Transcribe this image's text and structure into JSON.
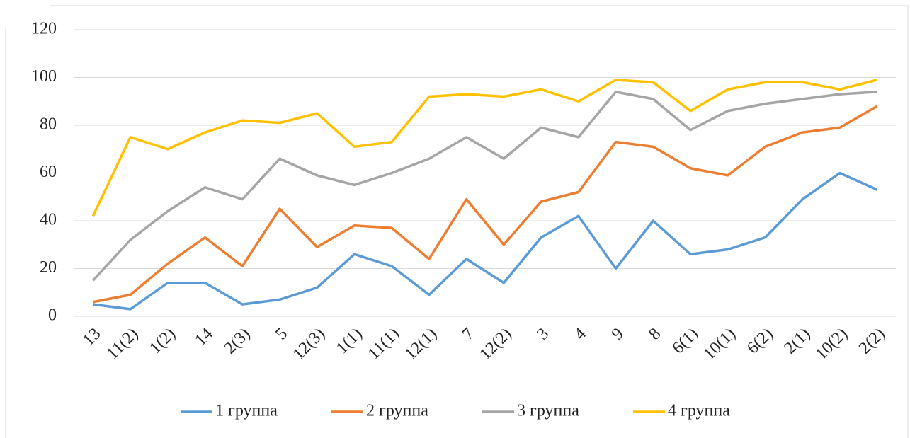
{
  "chart_data": {
    "type": "line",
    "categories": [
      "13",
      "11(2)",
      "1(2)",
      "14",
      "2(3)",
      "5",
      "12(3)",
      "1(1)",
      "11(1)",
      "12(1)",
      "7",
      "12(2)",
      "3",
      "4",
      "9",
      "8",
      "6(1)",
      "10(1)",
      "6(2)",
      "2(1)",
      "10(2)",
      "2(2)"
    ],
    "series": [
      {
        "name": "1 группа",
        "color": "#5b9bd5",
        "values": [
          5,
          3,
          14,
          14,
          5,
          7,
          12,
          26,
          21,
          9,
          24,
          14,
          33,
          42,
          20,
          40,
          26,
          28,
          33,
          49,
          60,
          53
        ]
      },
      {
        "name": "2 группа",
        "color": "#ed7d31",
        "values": [
          6,
          9,
          22,
          33,
          21,
          45,
          29,
          38,
          37,
          24,
          49,
          30,
          48,
          52,
          73,
          71,
          62,
          59,
          71,
          77,
          79,
          88
        ]
      },
      {
        "name": "3 группа",
        "color": "#a5a5a5",
        "values": [
          15,
          32,
          44,
          54,
          49,
          66,
          59,
          55,
          60,
          66,
          75,
          66,
          79,
          75,
          94,
          91,
          78,
          86,
          89,
          91,
          93,
          94
        ]
      },
      {
        "name": "4 группа",
        "color": "#ffc000",
        "values": [
          42,
          75,
          70,
          77,
          82,
          81,
          85,
          71,
          73,
          92,
          93,
          92,
          95,
          90,
          99,
          98,
          86,
          95,
          98,
          98,
          95,
          99
        ]
      }
    ],
    "ylim": [
      0,
      120
    ],
    "yticks": [
      0,
      20,
      40,
      60,
      80,
      100,
      120
    ],
    "grid": true,
    "legend": "bottom"
  }
}
